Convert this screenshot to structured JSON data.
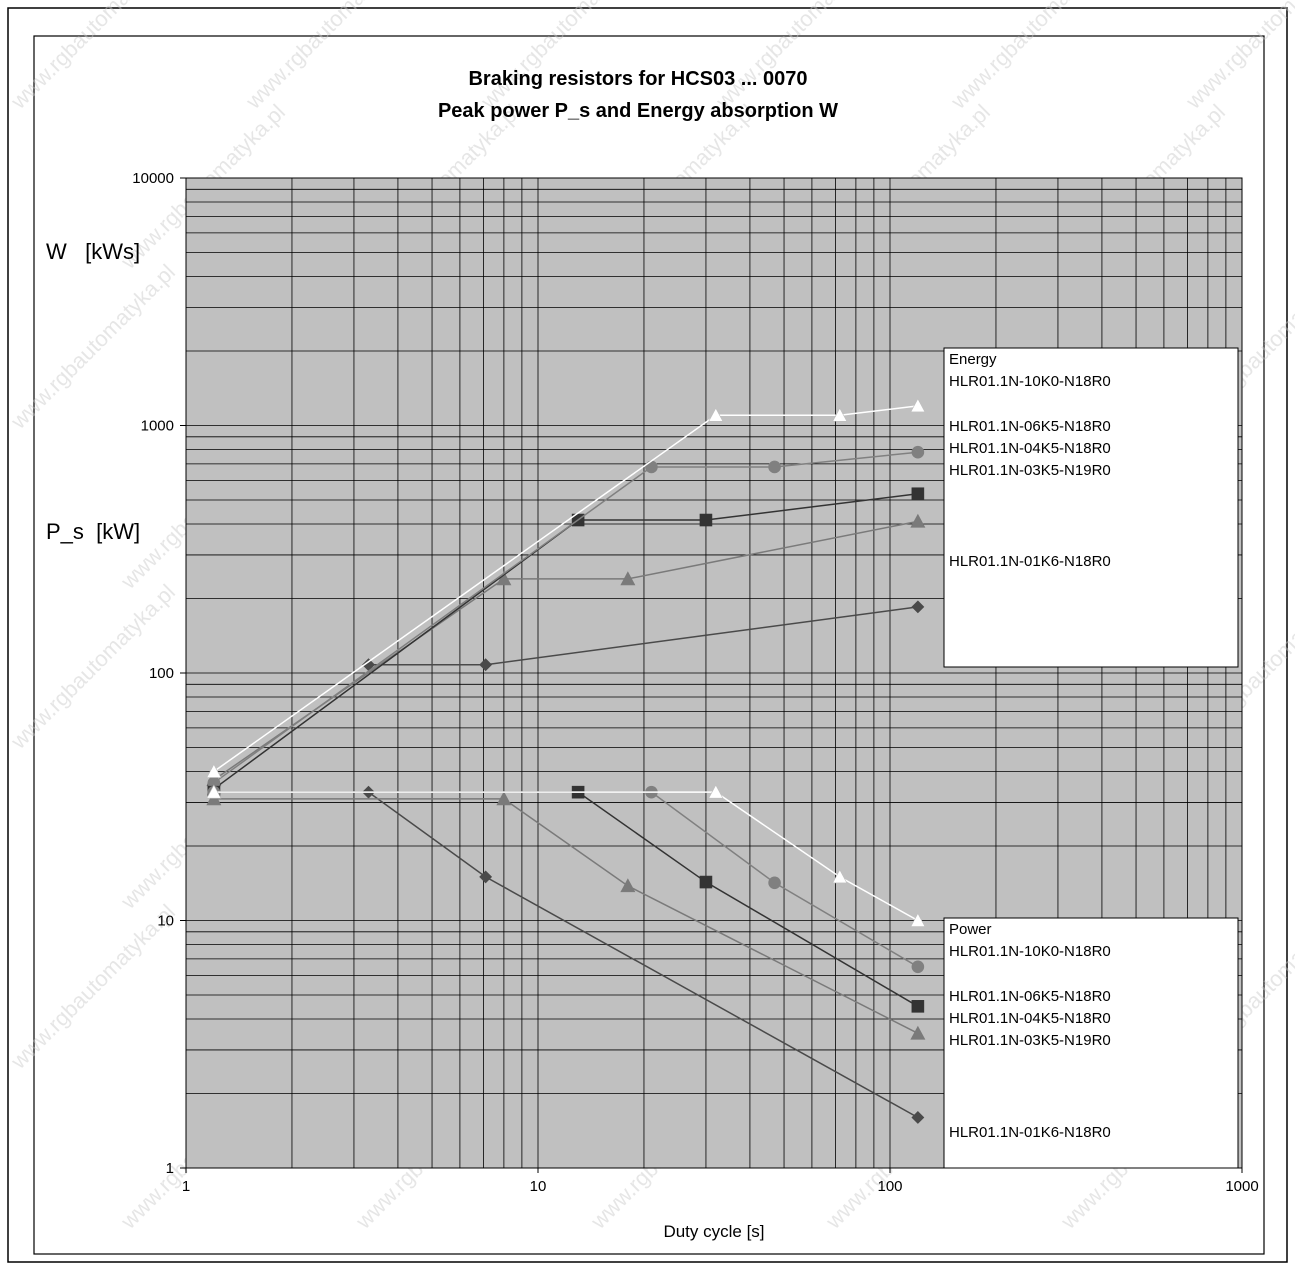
{
  "chart_data": {
    "type": "line",
    "title": [
      "Braking resistors for HCS03 ... 0070",
      "Peak power P_s and Energy absorption W"
    ],
    "ylabel_energy": "W   [kWs]",
    "ylabel_power": "P_s  [kW]",
    "xlabel": "Duty cycle [s]",
    "x_scale": "log",
    "y_scale": "log",
    "xlim": [
      1,
      1000
    ],
    "ylim": [
      1,
      10000
    ],
    "x_ticks": [
      "1",
      "10",
      "100",
      "1000"
    ],
    "y_ticks": [
      "1",
      "10",
      "100",
      "1000",
      "10000"
    ],
    "grid": true,
    "watermark": "www.rgbautomatyka.pl",
    "legends": {
      "energy": {
        "title": "Energy",
        "entries": [
          "HLR01.1N-10K0-N18R0",
          "HLR01.1N-06K5-N18R0",
          "HLR01.1N-04K5-N18R0",
          "HLR01.1N-03K5-N19R0",
          "HLR01.1N-01K6-N18R0"
        ]
      },
      "power": {
        "title": "Power",
        "entries": [
          "HLR01.1N-10K0-N18R0",
          "HLR01.1N-06K5-N18R0",
          "HLR01.1N-04K5-N18R0",
          "HLR01.1N-03K5-N19R0",
          "HLR01.1N-01K6-N18R0"
        ]
      }
    },
    "energy_series": [
      {
        "name": "HLR01.1N-10K0-N18R0",
        "marker": "triangle",
        "color": "#ffffff",
        "x": [
          1.2,
          32,
          72,
          120
        ],
        "y": [
          40,
          1100,
          1100,
          1200
        ]
      },
      {
        "name": "HLR01.1N-06K5-N18R0",
        "marker": "circle",
        "color": "#808080",
        "x": [
          1.2,
          21,
          47,
          120
        ],
        "y": [
          36,
          680,
          680,
          780
        ]
      },
      {
        "name": "HLR01.1N-04K5-N18R0",
        "marker": "square",
        "color": "#333333",
        "x": [
          1.2,
          13,
          30,
          120
        ],
        "y": [
          34,
          415,
          415,
          530
        ]
      },
      {
        "name": "HLR01.1N-03K5-N19R0",
        "marker": "triangle",
        "color": "#7a7a7a",
        "x": [
          1.2,
          8,
          18,
          120
        ],
        "y": [
          37,
          240,
          240,
          410
        ]
      },
      {
        "name": "HLR01.1N-01K6-N18R0",
        "marker": "diamond",
        "color": "#4a4a4a",
        "x": [
          3.3,
          7.1,
          120
        ],
        "y": [
          108,
          108,
          185
        ]
      }
    ],
    "power_series": [
      {
        "name": "HLR01.1N-10K0-N18R0",
        "marker": "triangle",
        "color": "#ffffff",
        "x": [
          1.2,
          32,
          72,
          120
        ],
        "y": [
          33,
          33,
          15,
          10
        ]
      },
      {
        "name": "HLR01.1N-06K5-N18R0",
        "marker": "circle",
        "color": "#808080",
        "x": [
          1.2,
          21,
          47,
          120
        ],
        "y": [
          33,
          33,
          14.2,
          6.5
        ]
      },
      {
        "name": "HLR01.1N-04K5-N18R0",
        "marker": "square",
        "color": "#333333",
        "x": [
          1.2,
          13,
          30,
          120
        ],
        "y": [
          33,
          33,
          14.3,
          4.5
        ]
      },
      {
        "name": "HLR01.1N-03K5-N19R0",
        "marker": "triangle",
        "color": "#7a7a7a",
        "x": [
          1.2,
          8,
          18,
          120
        ],
        "y": [
          31,
          31,
          13.8,
          3.5
        ]
      },
      {
        "name": "HLR01.1N-01K6-N18R0",
        "marker": "diamond",
        "color": "#4a4a4a",
        "x": [
          3.3,
          7.1,
          120
        ],
        "y": [
          33,
          15,
          1.6
        ]
      }
    ]
  }
}
